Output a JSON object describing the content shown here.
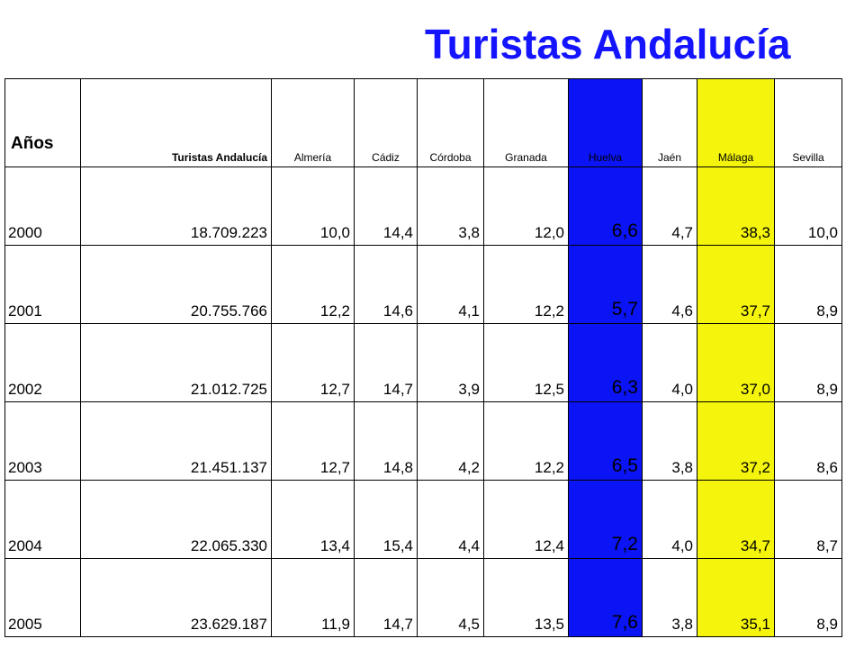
{
  "title": "Turistas Andalucía",
  "columns": {
    "years": "Años",
    "total": "Turistas Andalucía",
    "almeria": "Almería",
    "cadiz": "Cádiz",
    "cordoba": "Córdoba",
    "granada": "Granada",
    "huelva": "Huelva",
    "jaen": "Jaén",
    "malaga": "Málaga",
    "sevilla": "Sevilla"
  },
  "colors": {
    "title": "#1414ff",
    "huelva_highlight": "#0a14f5",
    "malaga_highlight": "#f4f40c"
  },
  "rows": [
    {
      "year": "2000",
      "total": "18.709.223",
      "almeria": "10,0",
      "cadiz": "14,4",
      "cordoba": "3,8",
      "granada": "12,0",
      "huelva": "6,6",
      "jaen": "4,7",
      "malaga": "38,3",
      "sevilla": "10,0"
    },
    {
      "year": "2001",
      "total": "20.755.766",
      "almeria": "12,2",
      "cadiz": "14,6",
      "cordoba": "4,1",
      "granada": "12,2",
      "huelva": "5,7",
      "jaen": "4,6",
      "malaga": "37,7",
      "sevilla": "8,9"
    },
    {
      "year": "2002",
      "total": "21.012.725",
      "almeria": "12,7",
      "cadiz": "14,7",
      "cordoba": "3,9",
      "granada": "12,5",
      "huelva": "6,3",
      "jaen": "4,0",
      "malaga": "37,0",
      "sevilla": "8,9"
    },
    {
      "year": "2003",
      "total": "21.451.137",
      "almeria": "12,7",
      "cadiz": "14,8",
      "cordoba": "4,2",
      "granada": "12,2",
      "huelva": "6,5",
      "jaen": "3,8",
      "malaga": "37,2",
      "sevilla": "8,6"
    },
    {
      "year": "2004",
      "total": "22.065.330",
      "almeria": "13,4",
      "cadiz": "15,4",
      "cordoba": "4,4",
      "granada": "12,4",
      "huelva": "7,2",
      "jaen": "4,0",
      "malaga": "34,7",
      "sevilla": "8,7"
    },
    {
      "year": "2005",
      "total": "23.629.187",
      "almeria": "11,9",
      "cadiz": "14,7",
      "cordoba": "4,5",
      "granada": "13,5",
      "huelva": "7,6",
      "jaen": "3,8",
      "malaga": "35,1",
      "sevilla": "8,9"
    }
  ]
}
